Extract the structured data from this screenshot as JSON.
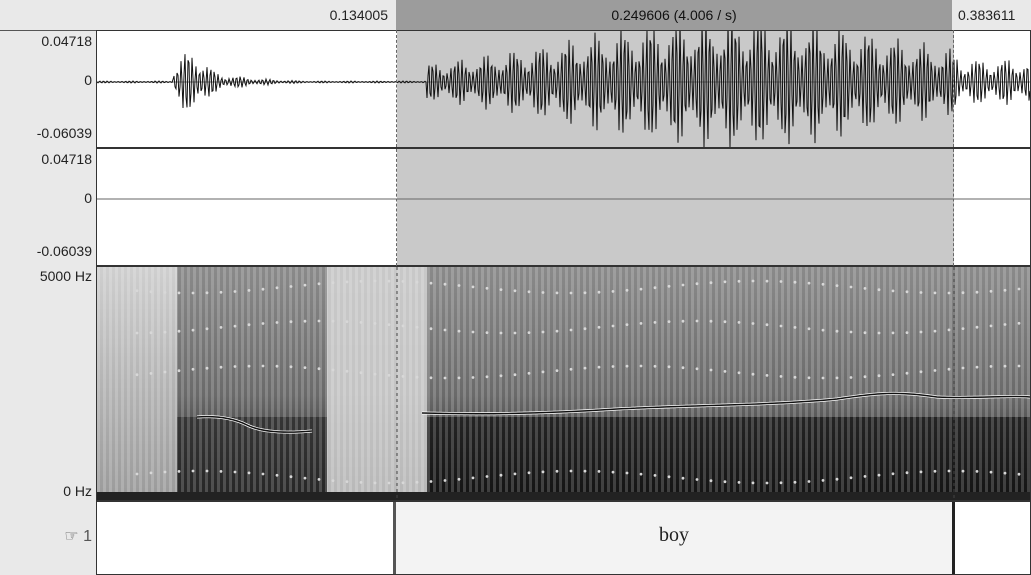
{
  "time_bar": {
    "left_time": "0.134005",
    "selection_label": "0.249606 (4.006 / s)",
    "right_time": "0.383611"
  },
  "waveform_channel_1": {
    "max_label": "0.04718",
    "zero_label": "0",
    "min_label": "-0.06039"
  },
  "waveform_channel_2": {
    "max_label": "0.04718",
    "zero_label": "0",
    "min_label": "-0.06039"
  },
  "spectrogram": {
    "max_label": "5000 Hz",
    "min_label": "0 Hz"
  },
  "tier": {
    "icon": "pointing-hand-icon",
    "number": "1",
    "interval_text": "boy"
  },
  "colors": {
    "selection": "#c9c9c9",
    "selection_bar": "#9c9c9c",
    "pitch_line": "#111111"
  }
}
